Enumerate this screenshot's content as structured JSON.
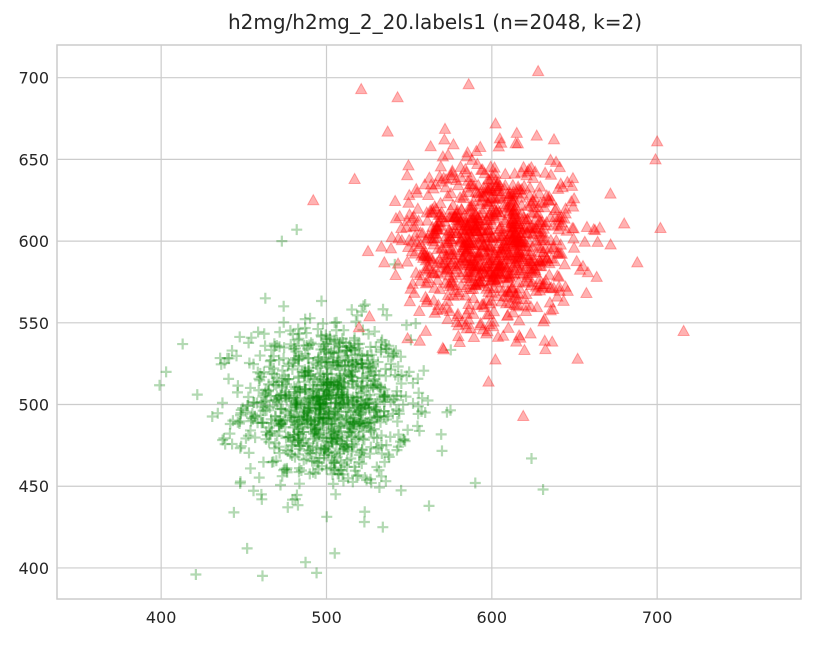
{
  "chart_data": {
    "type": "scatter",
    "title": "h2mg/h2mg_2_20.labels1 (n=2048, k=2)",
    "xlabel": "",
    "ylabel": "",
    "xlim": [
      337,
      787
    ],
    "ylim": [
      381,
      720
    ],
    "x_ticks": [
      400,
      500,
      600,
      700
    ],
    "y_ticks": [
      400,
      450,
      500,
      550,
      600,
      650,
      700
    ],
    "grid": true,
    "legend": "none",
    "series": [
      {
        "marker": "triangle",
        "color": "#ff0000",
        "count": 1024,
        "center": [
          600,
          600
        ],
        "std": [
          25,
          25
        ],
        "sample_points": [
          [
            628,
            704
          ],
          [
            586,
            696
          ],
          [
            521,
            693
          ],
          [
            537,
            667
          ],
          [
            543,
            688
          ],
          [
            517,
            638
          ],
          [
            702,
            608
          ],
          [
            542,
            614
          ],
          [
            535,
            587
          ],
          [
            492,
            625
          ],
          [
            716,
            545
          ],
          [
            619,
            493
          ],
          [
            598,
            514
          ],
          [
            632,
            539
          ],
          [
            688,
            587
          ],
          [
            699,
            650
          ],
          [
            700,
            661
          ],
          [
            563,
            658
          ],
          [
            579,
            605
          ],
          [
            610,
            590
          ]
        ]
      },
      {
        "marker": "plus",
        "color": "#008000",
        "count": 1024,
        "center": [
          500,
          500
        ],
        "std": [
          25,
          25
        ],
        "sample_points": [
          [
            413,
            537
          ],
          [
            403,
            520
          ],
          [
            421,
            396
          ],
          [
            452,
            412
          ],
          [
            494,
            397
          ],
          [
            505,
            409
          ],
          [
            631,
            448
          ],
          [
            624,
            467
          ],
          [
            482,
            607
          ],
          [
            473,
            600
          ],
          [
            463,
            565
          ],
          [
            542,
            533
          ],
          [
            550,
            520
          ],
          [
            444,
            434
          ],
          [
            562,
            438
          ],
          [
            590,
            452
          ],
          [
            512,
            474
          ],
          [
            487,
            520
          ],
          [
            530,
            497
          ],
          [
            501,
            492
          ]
        ]
      }
    ]
  }
}
